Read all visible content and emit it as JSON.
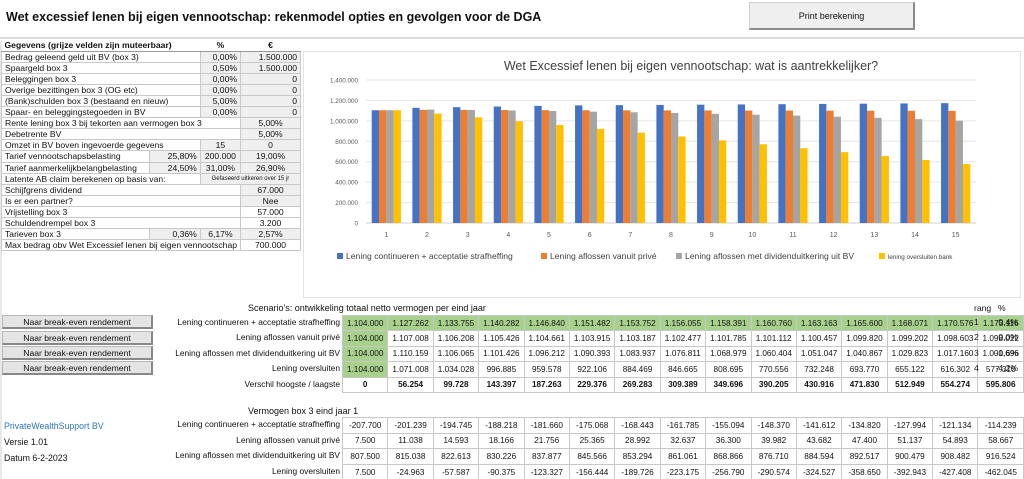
{
  "header": {
    "title": "Wet excessief lenen bij eigen vennootschap: rekenmodel opties en gevolgen voor de DGA",
    "print_button": "Print berekening"
  },
  "inputs": {
    "heading": "Gegevens (grijze velden zijn muteerbaar)",
    "col_pct": "%",
    "col_eur": "€",
    "rows": [
      {
        "label": "Bedrag geleend geld uit BV (box 3)",
        "pct": "0,00%",
        "eur": "1.500.000"
      },
      {
        "label": "Spaargeld box 3",
        "pct": "0,50%",
        "eur": "1.500.000"
      },
      {
        "label": "Beleggingen box 3",
        "pct": "0,00%",
        "eur": "0"
      },
      {
        "label": "Overige bezittingen box 3 (OG etc)",
        "pct": "0,00%",
        "eur": "0"
      },
      {
        "label": "(Bank)schulden box 3 (bestaand en nieuw)",
        "pct": "5,00%",
        "eur": "0"
      },
      {
        "label": "Spaar- en beleggingstegoeden in BV",
        "pct": "0,00%",
        "eur": "0"
      }
    ],
    "rente_lening": {
      "label": "Rente lening box 3 bij tekorten aan vermogen box 3",
      "value": "5,00%"
    },
    "debetrente": {
      "label": "Debetrente BV",
      "value": "5,00%"
    },
    "omzet": {
      "label": "Omzet in BV boven ingevoerde gegevens",
      "v1": "15",
      "v2": "0"
    },
    "vpb": {
      "label": "Tarief vennootschapsbelasting",
      "v1": "25,80%",
      "v2": "200.000",
      "v3": "19,00%"
    },
    "ab": {
      "label": "Tarief aanmerkelijkbelangbelasting",
      "v1": "24,50%",
      "v2": "31,00%",
      "v3": "26,90%"
    },
    "latente": {
      "label": "Latente AB claim berekenen op basis van:",
      "value": "Gefaseerd uitkeren over 15 jr"
    },
    "schijfgrens": {
      "label": "Schijfgrens dividend",
      "value": "67.000"
    },
    "partner": {
      "label": "Is er een partner?",
      "value": "Nee"
    },
    "vrijstelling": {
      "label": "Vrijstelling box 3",
      "value": "57.000"
    },
    "schuldendrempel": {
      "label": "Schuldendrempel box 3",
      "value": "3.200"
    },
    "tarieven": {
      "label": "Tarieven  box 3",
      "v1": "0,36%",
      "v2": "6,17%",
      "v3": "2,57%"
    },
    "max_bedrag": {
      "label": "Max bedrag obv Wet Excessief lenen bij eigen vennootschap",
      "value": "700.000"
    }
  },
  "chart_data": {
    "type": "bar",
    "title": "Wet  Excessief lenen bij eigen vennootschap: wat is aantrekkelijker?",
    "xlabel": "",
    "ylabel": "",
    "ylim": [
      0,
      1400000
    ],
    "yticks": [
      "0",
      "200.000",
      "400.000",
      "600.000",
      "800.000",
      "1.000.000",
      "1.200.000",
      "1.400.000"
    ],
    "ytick_values": [
      0,
      200000,
      400000,
      600000,
      800000,
      1000000,
      1200000,
      1400000
    ],
    "grid": true,
    "legend": "bottom",
    "categories": [
      "1",
      "2",
      "3",
      "4",
      "5",
      "6",
      "7",
      "8",
      "9",
      "10",
      "11",
      "12",
      "13",
      "14",
      "15"
    ],
    "series": [
      {
        "name": "Lening continueren + acceptatie strafheffing",
        "color": "#4472c4",
        "values": [
          1104000,
          1127262,
          1133755,
          1140282,
          1146840,
          1151482,
          1153752,
          1156055,
          1158391,
          1160760,
          1163163,
          1165600,
          1168071,
          1170576,
          1173116
        ]
      },
      {
        "name": "Lening aflossen vanuit privé",
        "color": "#ed7d31",
        "values": [
          1104000,
          1107008,
          1106208,
          1105426,
          1104661,
          1103915,
          1103187,
          1102477,
          1101785,
          1101112,
          1100457,
          1099820,
          1099202,
          1098603,
          1098022
        ]
      },
      {
        "name": "Lening aflossen met dividenduitkering uit BV",
        "color": "#a5a5a5",
        "values": [
          1104000,
          1110159,
          1106065,
          1101426,
          1096212,
          1090393,
          1083937,
          1076811,
          1068979,
          1060404,
          1051047,
          1040867,
          1029823,
          1017160,
          1001696
        ]
      },
      {
        "name": "lening oversluiten bank",
        "color": "#ffc000",
        "values": [
          1104000,
          1071008,
          1034028,
          996885,
          959578,
          922106,
          884469,
          846665,
          808695,
          770556,
          732248,
          693770,
          655122,
          616302,
          577310
        ]
      }
    ]
  },
  "scenarios": {
    "title": "Scenario's: ontwikkeling totaal netto vermogen per eind jaar",
    "rank_header": "rang",
    "pct_header": "%",
    "break_even_button": "Naar break-even rendement",
    "rows": [
      {
        "label": "Lening continueren + acceptatie strafheffing",
        "rank": "1",
        "pct": "0,4%",
        "values": [
          "1.104.000",
          "1.127.262",
          "1.133.755",
          "1.140.282",
          "1.146.840",
          "1.151.482",
          "1.153.752",
          "1.156.055",
          "1.158.391",
          "1.160.760",
          "1.163.163",
          "1.165.600",
          "1.168.071",
          "1.170.576",
          "1.173.116"
        ]
      },
      {
        "label": "Lening aflossen vanuit privé",
        "rank": "2",
        "pct": "0,0%",
        "values": [
          "1.104.000",
          "1.107.008",
          "1.106.208",
          "1.105.426",
          "1.104.661",
          "1.103.915",
          "1.103.187",
          "1.102.477",
          "1.101.785",
          "1.101.112",
          "1.100.457",
          "1.099.820",
          "1.099.202",
          "1.098.603",
          "1.098.022"
        ]
      },
      {
        "label": "Lening aflossen met dividenduitkering uit BV",
        "rank": "3",
        "pct": "-0,6%",
        "values": [
          "1.104.000",
          "1.110.159",
          "1.106.065",
          "1.101.426",
          "1.096.212",
          "1.090.393",
          "1.083.937",
          "1.076.811",
          "1.068.979",
          "1.060.404",
          "1.051.047",
          "1.040.867",
          "1.029.823",
          "1.017.160",
          "1.001.696"
        ]
      },
      {
        "label": "Lening oversluiten",
        "rank": "4",
        "pct": "-4,2%",
        "values": [
          "1.104.000",
          "1.071.008",
          "1.034.028",
          "996.885",
          "959.578",
          "922.106",
          "884.469",
          "846.665",
          "808.695",
          "770.556",
          "732.248",
          "693.770",
          "655.122",
          "616.302",
          "577.310"
        ]
      }
    ],
    "diff": {
      "label": "Verschil hoogste / laagste",
      "values": [
        "0",
        "56.254",
        "99.728",
        "143.397",
        "187.263",
        "229.376",
        "269.283",
        "309.389",
        "349.696",
        "390.205",
        "430.916",
        "471.830",
        "512.949",
        "554.274",
        "595.806"
      ]
    }
  },
  "box3": {
    "title": "Vermogen box 3 eind jaar 1",
    "rows": [
      {
        "label": "Lening continueren + acceptatie strafheffing",
        "values": [
          "-207.700",
          "-201.239",
          "-194.745",
          "-188.218",
          "-181.660",
          "-175.068",
          "-168.443",
          "-161.785",
          "-155.094",
          "-148.370",
          "-141.612",
          "-134.820",
          "-127.994",
          "-121.134",
          "-114.239"
        ]
      },
      {
        "label": "Lening aflossen vanuit privé",
        "values": [
          "7.500",
          "11.038",
          "14.593",
          "18.166",
          "21.756",
          "25.365",
          "28.992",
          "32.637",
          "36.300",
          "39.982",
          "43.682",
          "47.400",
          "51.137",
          "54.893",
          "58.667"
        ]
      },
      {
        "label": "Lening aflossen met dividenduitkering uit BV",
        "values": [
          "807.500",
          "815.038",
          "822.613",
          "830.226",
          "837.877",
          "845.566",
          "853.294",
          "861.061",
          "868.866",
          "876.710",
          "884.594",
          "892.517",
          "900.479",
          "908.482",
          "916.524"
        ]
      },
      {
        "label": "Lening oversluiten",
        "values": [
          "7.500",
          "-24.963",
          "-57.587",
          "-90.375",
          "-123.327",
          "-156.444",
          "-189.726",
          "-223.175",
          "-256.790",
          "-290.574",
          "-324.527",
          "-358.650",
          "-392.943",
          "-427.408",
          "-462.045"
        ]
      }
    ]
  },
  "footer": {
    "brand": "PrivateWealthSupport BV",
    "version": "Versie 1.01",
    "date": "Datum 6-2-2023"
  }
}
